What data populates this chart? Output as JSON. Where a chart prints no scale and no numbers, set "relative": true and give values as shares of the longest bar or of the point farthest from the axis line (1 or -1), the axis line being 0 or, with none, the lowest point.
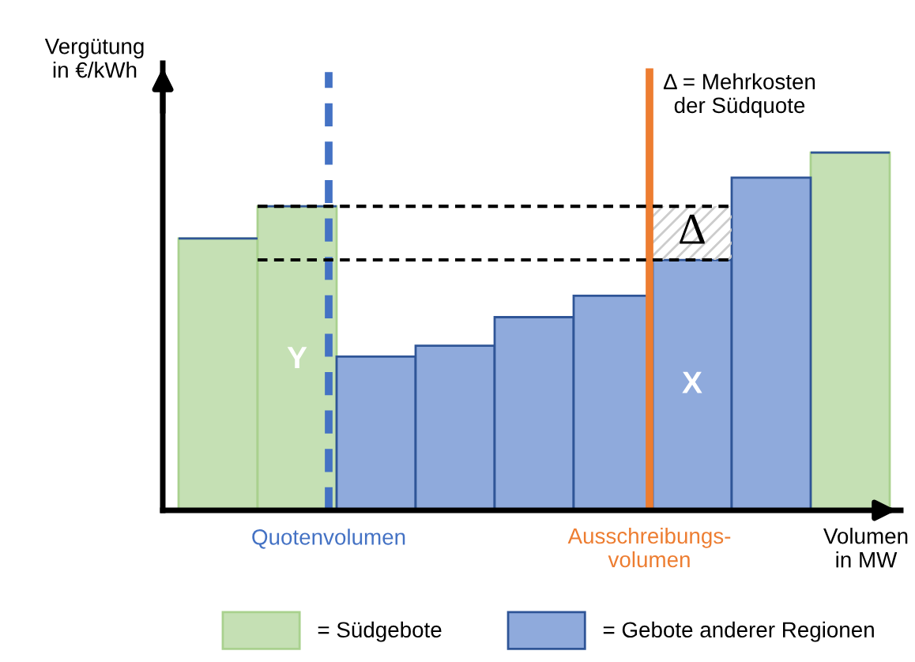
{
  "chart_data": {
    "type": "bar",
    "relative": true,
    "ylabel": "Vergütung\nin €/kWh",
    "xlabel": "Volumen\nin MW",
    "categories": [
      null,
      null,
      null,
      null,
      null,
      null,
      null,
      null,
      null
    ],
    "series": [
      {
        "name": "= Südgebote",
        "color": "#c5e0b4",
        "values": [
          0.76,
          0.85,
          null,
          null,
          null,
          null,
          null,
          null,
          1
        ]
      },
      {
        "name": "= Gebote anderer Regionen",
        "color": "#8faadc",
        "values": [
          null,
          null,
          0.43,
          0.46,
          0.54,
          0.6,
          0.7,
          0.93,
          null
        ]
      }
    ],
    "stacked": true,
    "ref_lines": [
      {
        "axis": "y",
        "value": 0.85,
        "label": null,
        "color": "#000000",
        "line_style": "dashed"
      },
      {
        "axis": "y",
        "value": 0.7,
        "label": null,
        "color": "#000000",
        "line_style": "dashed"
      }
    ],
    "annotations": [
      "Y",
      "X",
      "Δ",
      "Δ = Mehrkosten\nder Südquote",
      "Quotenvolumen",
      "Ausschreibungs-\nvolumen"
    ],
    "legend": "bottom",
    "grid": false
  }
}
